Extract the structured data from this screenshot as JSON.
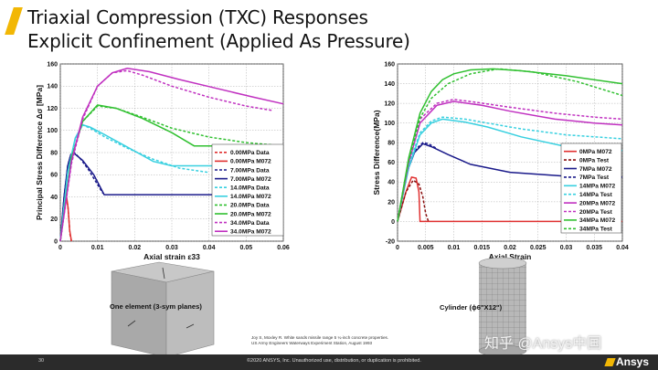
{
  "slide": {
    "title_line1": "Triaxial Compression (TXC) Responses",
    "title_line2": "Explicit Confinement (Applied As Pressure)",
    "page_number": "30",
    "copyright": "©2020 ANSYS, Inc. Unauthorized use, distribution, or duplication is prohibited.",
    "brand": "Ansys",
    "watermark": "知乎 @Ansys中国",
    "caption_element": "One element (3-sym planes)",
    "caption_cylinder": "Cylinder (ϕ6\"X12\")",
    "reference_line1": "Joy S, Moxley R. White sands missile range 5 ¼-inch concrete properties.",
    "reference_line2": "US Army Engineers Waterways Experiment Station, August 1993"
  },
  "chart_data": [
    {
      "type": "line",
      "xlabel": "Axial strain ε33",
      "ylabel": "Principal Stress Difference Δσ [MPa]",
      "xlim": [
        0,
        0.06
      ],
      "ylim": [
        0,
        160
      ],
      "xticks": [
        0,
        0.01,
        0.02,
        0.03,
        0.04,
        0.05,
        0.06
      ],
      "xtick_labels": [
        "0",
        "0.01",
        "0.02",
        "0.03",
        "0.04",
        "0.05",
        "0.06"
      ],
      "yticks": [
        0,
        20,
        40,
        60,
        80,
        100,
        120,
        140,
        160
      ],
      "grid": true,
      "legend_position": "bottom-right",
      "series": [
        {
          "name": "0.00MPa Data",
          "color": "#e03030",
          "dashed": true,
          "x": [
            0,
            0.0008,
            0.0015,
            0.002,
            0.0023,
            0.0026,
            0.003
          ],
          "y": [
            0,
            25,
            38,
            33,
            20,
            6,
            0
          ]
        },
        {
          "name": "0.00MPa M072",
          "color": "#e03030",
          "dashed": false,
          "x": [
            0,
            0.001,
            0.0017,
            0.0021,
            0.0025,
            0.003
          ],
          "y": [
            0,
            30,
            40,
            30,
            10,
            0
          ]
        },
        {
          "name": "7.00MPa Data",
          "color": "#1a1a8a",
          "dashed": true,
          "x": [
            0,
            0.001,
            0.002,
            0.0028,
            0.0035,
            0.0055,
            0.0075,
            0.0095,
            0.0115
          ],
          "y": [
            0,
            40,
            68,
            78,
            81,
            74,
            65,
            54,
            43
          ]
        },
        {
          "name": "7.00MPa M072",
          "color": "#1a1a8a",
          "dashed": false,
          "x": [
            0,
            0.001,
            0.002,
            0.0028,
            0.0035,
            0.006,
            0.009,
            0.0118,
            0.03,
            0.045
          ],
          "y": [
            0,
            40,
            68,
            78,
            80,
            73,
            60,
            42,
            42,
            42
          ]
        },
        {
          "name": "14.0MPa Data",
          "color": "#38d0e0",
          "dashed": true,
          "x": [
            0,
            0.002,
            0.004,
            0.006,
            0.008,
            0.012,
            0.018,
            0.025,
            0.032,
            0.04
          ],
          "y": [
            0,
            62,
            92,
            105,
            102,
            94,
            84,
            74,
            66,
            62
          ]
        },
        {
          "name": "14.0MPa M072",
          "color": "#38d0e0",
          "dashed": false,
          "x": [
            0,
            0.002,
            0.004,
            0.006,
            0.008,
            0.012,
            0.018,
            0.025,
            0.03,
            0.04,
            0.05
          ],
          "y": [
            0,
            62,
            93,
            105,
            103,
            96,
            85,
            72,
            68,
            68,
            68
          ]
        },
        {
          "name": "20.0MPa Data",
          "color": "#30c030",
          "dashed": true,
          "x": [
            0,
            0.003,
            0.006,
            0.01,
            0.015,
            0.022,
            0.03,
            0.04,
            0.05,
            0.06
          ],
          "y": [
            0,
            75,
            108,
            122,
            120,
            112,
            102,
            94,
            89,
            86
          ]
        },
        {
          "name": "20.0MPa M072",
          "color": "#30c030",
          "dashed": false,
          "x": [
            0,
            0.003,
            0.006,
            0.01,
            0.015,
            0.022,
            0.03,
            0.036,
            0.045,
            0.06
          ],
          "y": [
            0,
            75,
            108,
            123,
            120,
            111,
            98,
            86,
            86,
            86
          ]
        },
        {
          "name": "34.0MPa Data",
          "color": "#c030c0",
          "dashed": true,
          "x": [
            0,
            0.003,
            0.006,
            0.01,
            0.014,
            0.018,
            0.022,
            0.03,
            0.04,
            0.05,
            0.057
          ],
          "y": [
            0,
            70,
            110,
            140,
            152,
            154,
            150,
            140,
            130,
            122,
            118
          ]
        },
        {
          "name": "34.0MPa M072",
          "color": "#c030c0",
          "dashed": false,
          "x": [
            0,
            0.003,
            0.006,
            0.01,
            0.014,
            0.018,
            0.024,
            0.032,
            0.042,
            0.052,
            0.06
          ],
          "y": [
            0,
            72,
            112,
            140,
            152,
            156,
            153,
            146,
            138,
            130,
            124
          ]
        }
      ]
    },
    {
      "type": "line",
      "xlabel": "Axial Strain",
      "ylabel": "Stress Difference(MPa)",
      "xlim": [
        0,
        0.04
      ],
      "ylim": [
        -20,
        160
      ],
      "xticks": [
        0,
        0.005,
        0.01,
        0.015,
        0.02,
        0.025,
        0.03,
        0.035,
        0.04
      ],
      "xtick_labels": [
        "0",
        "0.005",
        "0.01",
        "0.015",
        "0.02",
        "0.025",
        "0.03",
        "0.035",
        "0.04"
      ],
      "yticks": [
        -20,
        0,
        20,
        40,
        60,
        80,
        100,
        120,
        140,
        160
      ],
      "grid": true,
      "legend_position": "right",
      "series": [
        {
          "name": "0MPa M072",
          "color": "#e03030",
          "dashed": false,
          "x": [
            0,
            0.0015,
            0.0025,
            0.0033,
            0.0038,
            0.004,
            0.04
          ],
          "y": [
            0,
            30,
            45,
            44,
            30,
            0,
            0
          ]
        },
        {
          "name": "0MPa Test",
          "color": "#8a1010",
          "dashed": true,
          "x": [
            0,
            0.0015,
            0.0028,
            0.0038,
            0.0045,
            0.005,
            0.0055
          ],
          "y": [
            0,
            30,
            42,
            38,
            25,
            8,
            0
          ]
        },
        {
          "name": "7MPa M072",
          "color": "#1a1a8a",
          "dashed": false,
          "x": [
            0,
            0.001,
            0.002,
            0.003,
            0.0045,
            0.006,
            0.009,
            0.013,
            0.02,
            0.03,
            0.04
          ],
          "y": [
            0,
            30,
            55,
            70,
            79,
            76,
            68,
            58,
            50,
            46,
            45
          ]
        },
        {
          "name": "7MPa Test",
          "color": "#1a1a8a",
          "dashed": true,
          "x": [
            0,
            0.001,
            0.002,
            0.003,
            0.0045,
            0.0055,
            0.007
          ],
          "y": [
            0,
            32,
            58,
            72,
            80,
            79,
            74
          ]
        },
        {
          "name": "14MPa M072",
          "color": "#38d0e0",
          "dashed": false,
          "x": [
            0,
            0.002,
            0.004,
            0.006,
            0.008,
            0.012,
            0.016,
            0.022,
            0.03,
            0.04
          ],
          "y": [
            0,
            55,
            88,
            100,
            104,
            101,
            96,
            86,
            76,
            72
          ]
        },
        {
          "name": "14MPa Test",
          "color": "#38d0e0",
          "dashed": true,
          "x": [
            0,
            0.002,
            0.004,
            0.006,
            0.008,
            0.012,
            0.016,
            0.022,
            0.03,
            0.04
          ],
          "y": [
            0,
            58,
            90,
            102,
            106,
            104,
            100,
            94,
            88,
            84
          ]
        },
        {
          "name": "20MPa M072",
          "color": "#c030c0",
          "dashed": false,
          "x": [
            0,
            0.002,
            0.004,
            0.007,
            0.01,
            0.015,
            0.02,
            0.028,
            0.035,
            0.04
          ],
          "y": [
            0,
            60,
            100,
            118,
            122,
            118,
            112,
            104,
            100,
            98
          ]
        },
        {
          "name": "20MPa Test",
          "color": "#c030c0",
          "dashed": true,
          "x": [
            0,
            0.002,
            0.004,
            0.007,
            0.01,
            0.014,
            0.02,
            0.028,
            0.035,
            0.04
          ],
          "y": [
            0,
            62,
            104,
            120,
            124,
            121,
            116,
            110,
            106,
            104
          ]
        },
        {
          "name": "34MPa M072",
          "color": "#30c030",
          "dashed": false,
          "x": [
            0,
            0.002,
            0.004,
            0.006,
            0.008,
            0.01,
            0.013,
            0.017,
            0.022,
            0.03,
            0.04
          ],
          "y": [
            0,
            65,
            110,
            132,
            144,
            150,
            154,
            155,
            153,
            148,
            140
          ]
        },
        {
          "name": "34MPa Test",
          "color": "#30c030",
          "dashed": true,
          "x": [
            0,
            0.002,
            0.004,
            0.006,
            0.009,
            0.013,
            0.018,
            0.024,
            0.032,
            0.04
          ],
          "y": [
            0,
            62,
            105,
            125,
            140,
            150,
            155,
            152,
            142,
            128
          ]
        }
      ]
    }
  ]
}
